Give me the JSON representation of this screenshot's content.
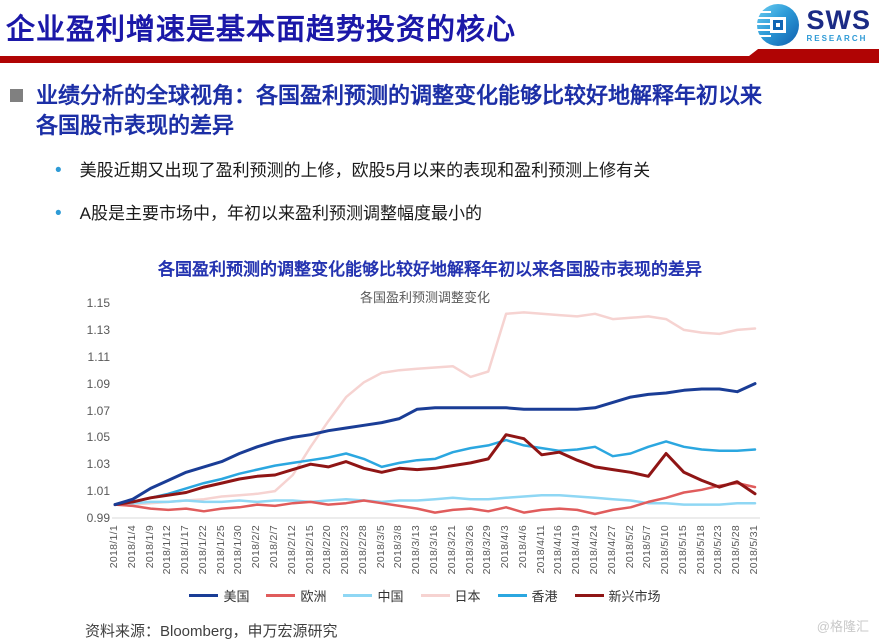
{
  "header": {
    "title": "企业盈利增速是基本面趋势投资的核心",
    "logo_text": "SWS",
    "logo_subtext": "RESEARCH"
  },
  "section": {
    "heading": "业绩分析的全球视角：各国盈利预测的调整变化能够比较好地解释年初以来各国股市表现的差异",
    "bullets": [
      "美股近期又出现了盈利预测的上修，欧股5月以来的表现和盈利预测上修有关",
      "A股是主要市场中，年初以来盈利预测调整幅度最小的"
    ]
  },
  "chart_heading": "各国盈利预测的调整变化能够比较好地解释年初以来各国股市表现的差异",
  "chart_data": {
    "type": "line",
    "title": "各国盈利预测调整变化",
    "grid": false,
    "legend_position": "bottom",
    "ylim": [
      0.99,
      1.15
    ],
    "yticks": [
      "1.15",
      "1.13",
      "1.11",
      "1.09",
      "1.07",
      "1.05",
      "1.03",
      "1.01",
      "0.99"
    ],
    "categories": [
      "2018/1/1",
      "2018/1/4",
      "2018/1/9",
      "2018/1/12",
      "2018/1/17",
      "2018/1/22",
      "2018/1/25",
      "2018/1/30",
      "2018/2/2",
      "2018/2/7",
      "2018/2/12",
      "2018/2/15",
      "2018/2/20",
      "2018/2/23",
      "2018/2/28",
      "2018/3/5",
      "2018/3/8",
      "2018/3/13",
      "2018/3/16",
      "2018/3/21",
      "2018/3/26",
      "2018/3/29",
      "2018/4/3",
      "2018/4/6",
      "2018/4/11",
      "2018/4/16",
      "2018/4/19",
      "2018/4/24",
      "2018/4/27",
      "2018/5/2",
      "2018/5/7",
      "2018/5/10",
      "2018/5/15",
      "2018/5/18",
      "2018/5/23",
      "2018/5/28",
      "2018/5/31"
    ],
    "series": [
      {
        "name": "美国",
        "color": "#1A3D96",
        "values": [
          1.0,
          1.004,
          1.012,
          1.018,
          1.024,
          1.028,
          1.032,
          1.038,
          1.043,
          1.047,
          1.05,
          1.052,
          1.055,
          1.057,
          1.059,
          1.061,
          1.064,
          1.071,
          1.072,
          1.072,
          1.072,
          1.072,
          1.072,
          1.071,
          1.071,
          1.071,
          1.071,
          1.072,
          1.076,
          1.08,
          1.082,
          1.083,
          1.085,
          1.086,
          1.086,
          1.084,
          1.09
        ]
      },
      {
        "name": "欧洲",
        "color": "#E05C5C",
        "values": [
          1.0,
          0.999,
          0.997,
          0.996,
          0.997,
          0.995,
          0.997,
          0.998,
          1.0,
          0.999,
          1.001,
          1.002,
          1.0,
          1.001,
          1.003,
          1.001,
          0.999,
          0.997,
          0.994,
          0.996,
          0.997,
          0.995,
          0.998,
          0.994,
          0.996,
          0.997,
          0.996,
          0.993,
          0.996,
          0.998,
          1.002,
          1.005,
          1.009,
          1.011,
          1.014,
          1.016,
          1.013
        ]
      },
      {
        "name": "中国",
        "color": "#8FD7F4",
        "values": [
          1.0,
          1.001,
          1.002,
          1.002,
          1.003,
          1.002,
          1.002,
          1.003,
          1.002,
          1.003,
          1.003,
          1.002,
          1.003,
          1.004,
          1.003,
          1.002,
          1.003,
          1.003,
          1.004,
          1.005,
          1.004,
          1.004,
          1.005,
          1.006,
          1.007,
          1.007,
          1.006,
          1.005,
          1.004,
          1.003,
          1.001,
          1.001,
          1.0,
          1.0,
          1.0,
          1.001,
          1.001
        ]
      },
      {
        "name": "日本",
        "color": "#F6D3D1",
        "values": [
          1.0,
          1.0,
          1.001,
          1.002,
          1.003,
          1.004,
          1.006,
          1.007,
          1.008,
          1.01,
          1.022,
          1.043,
          1.062,
          1.08,
          1.091,
          1.098,
          1.1,
          1.101,
          1.102,
          1.103,
          1.095,
          1.099,
          1.142,
          1.143,
          1.142,
          1.141,
          1.14,
          1.142,
          1.138,
          1.139,
          1.14,
          1.138,
          1.13,
          1.128,
          1.127,
          1.13,
          1.131
        ]
      },
      {
        "name": "香港",
        "color": "#2BA7E0",
        "values": [
          1.0,
          1.002,
          1.005,
          1.008,
          1.012,
          1.016,
          1.019,
          1.023,
          1.026,
          1.029,
          1.031,
          1.033,
          1.035,
          1.038,
          1.034,
          1.028,
          1.031,
          1.033,
          1.034,
          1.039,
          1.042,
          1.044,
          1.048,
          1.044,
          1.042,
          1.04,
          1.041,
          1.043,
          1.036,
          1.038,
          1.043,
          1.047,
          1.043,
          1.041,
          1.04,
          1.04,
          1.041
        ]
      },
      {
        "name": "新兴市场",
        "color": "#8F1515",
        "values": [
          1.0,
          1.002,
          1.005,
          1.007,
          1.009,
          1.013,
          1.016,
          1.019,
          1.021,
          1.022,
          1.026,
          1.03,
          1.028,
          1.032,
          1.027,
          1.024,
          1.027,
          1.026,
          1.027,
          1.029,
          1.031,
          1.034,
          1.052,
          1.049,
          1.037,
          1.039,
          1.033,
          1.028,
          1.026,
          1.024,
          1.021,
          1.038,
          1.024,
          1.018,
          1.013,
          1.017,
          1.008
        ]
      }
    ]
  },
  "footer": {
    "source": "资料来源：Bloomberg，申万宏源研究",
    "watermark": "@格隆汇"
  }
}
